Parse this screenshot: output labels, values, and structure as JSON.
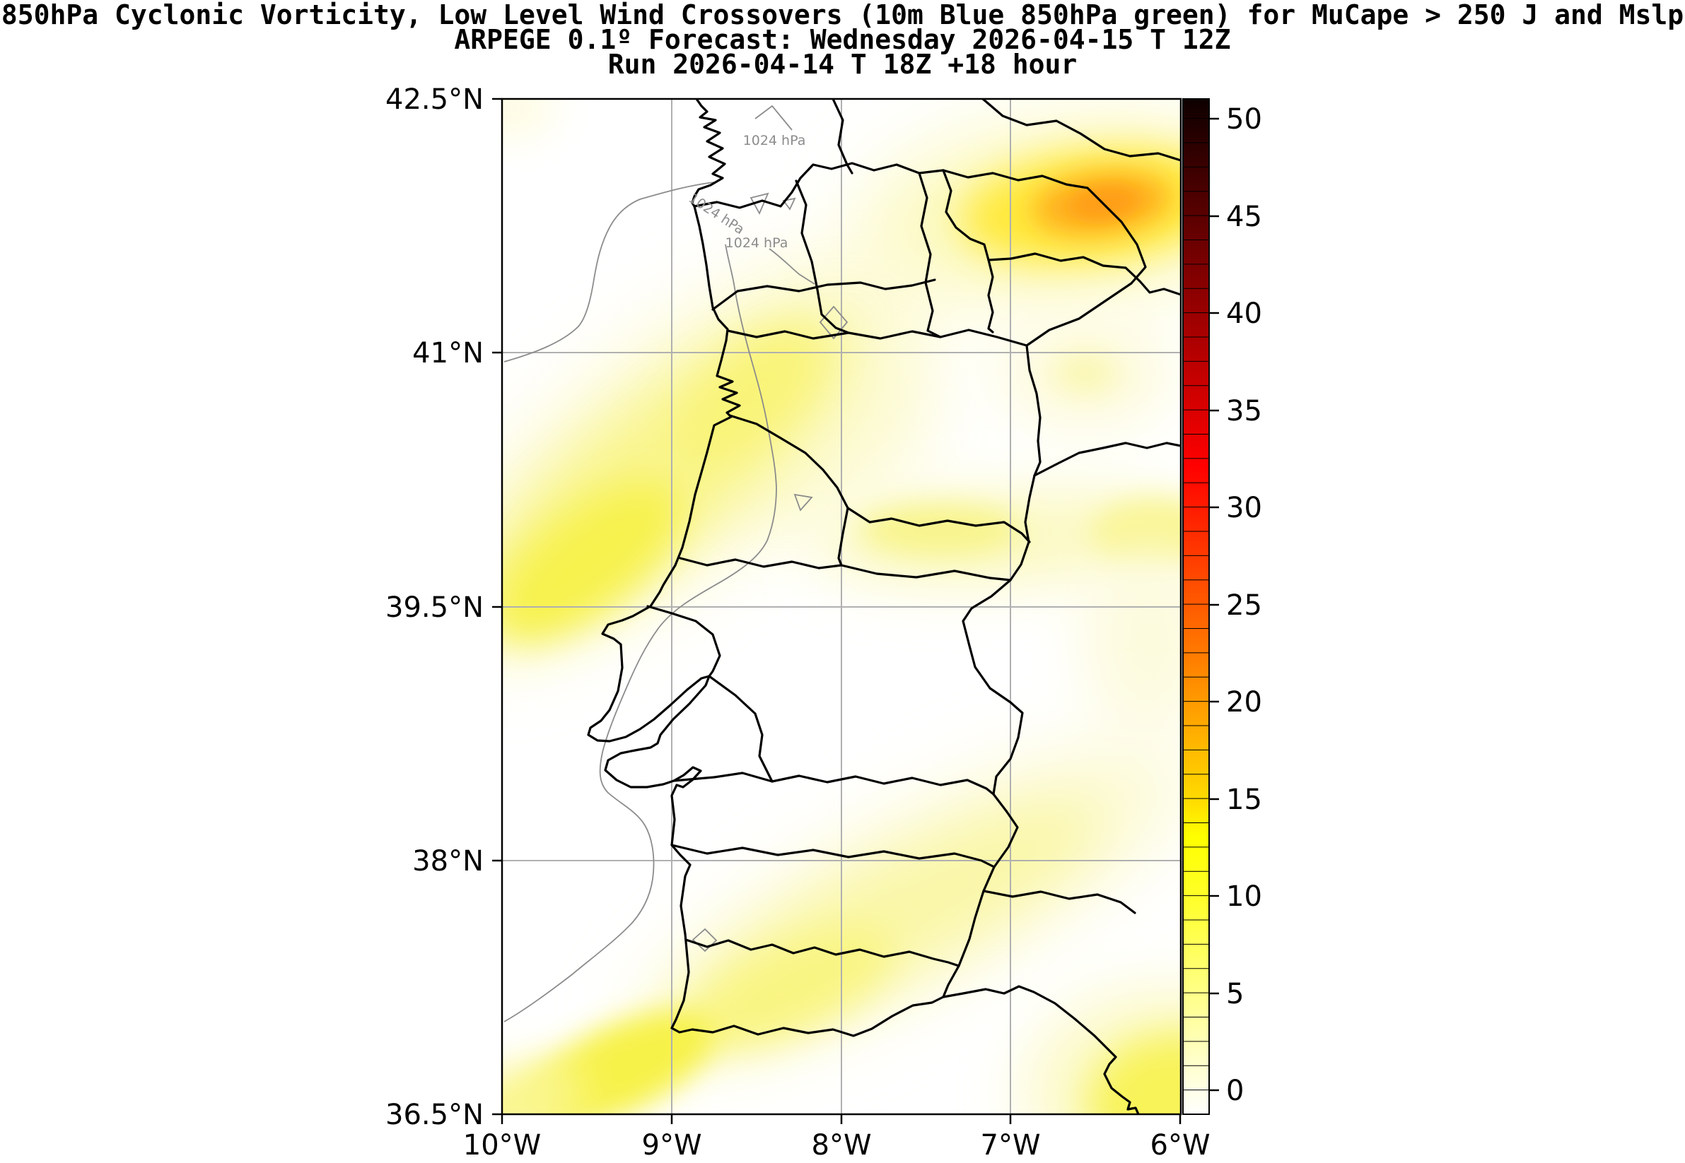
{
  "title": {
    "line1": "850hPa Cyclonic Vorticity, Low Level Wind Crossovers (10m Blue 850hPa green) for MuCape > 250 J and Mslp",
    "line2": "ARPEGE 0.1º Forecast: Wednesday 2026-04-15 T 12Z",
    "line3": "Run 2026-04-14 T 18Z +18 hour"
  },
  "axes": {
    "lat_ticks": [
      "42.5°N",
      "41°N",
      "39.5°N",
      "38°N",
      "36.5°N"
    ],
    "lon_ticks": [
      "10°W",
      "9°W",
      "8°W",
      "7°W",
      "6°W"
    ]
  },
  "colorbar": {
    "ticks": [
      "0",
      "5",
      "10",
      "15",
      "20",
      "25",
      "30",
      "35",
      "40",
      "45",
      "50"
    ],
    "segment_step": 1.25,
    "colors": {
      "0": "#FFFFE7",
      "5": "#FFFF87",
      "10": "#FFFF28",
      "15": "#FFDA00",
      "20": "#FF9A00",
      "25": "#FF5A00",
      "30": "#FF1B00",
      "35": "#DA0000",
      "40": "#9A0000",
      "45": "#5A0000",
      "50": "#1B0000"
    }
  },
  "map": {
    "mslp_labels": [
      "1024 hPa",
      "1024 hPa",
      "1024 hPa"
    ],
    "grid_color": "#b0b0b0",
    "contour_color": "#8c8c8c",
    "boundary_color": "#000000"
  },
  "chart_data": {
    "type": "heatmap",
    "title": "850hPa Cyclonic Vorticity, Low Level Wind Crossovers (10m Blue 850hPa green) for MuCape > 250 J and Mslp",
    "model": "ARPEGE 0.1º",
    "valid_time": "Wednesday 2026-04-15 T 12Z",
    "run": "2026-04-14 T 18Z +18 hour",
    "extent": {
      "lon_min": "10°W",
      "lon_max": "6°W",
      "lat_min": "36.5°N",
      "lat_max": "42.5°N"
    },
    "grid_lons": [
      "9°W",
      "8°W",
      "7°W"
    ],
    "grid_lats": [
      "41°N",
      "39.5°N",
      "38°N"
    ],
    "colorbar_range": [
      0,
      50
    ],
    "colorbar_tick_step": 5,
    "mslp_contour_hpa": 1024,
    "features": [
      {
        "name": "vorticity-maximum-northeast",
        "approx_lon": "6.4°W",
        "approx_lat": "41.9°N",
        "approx_value": 22
      },
      {
        "name": "nw-coastal-diagonal-band",
        "from": "8.4°W 41.2°N",
        "to": "10°W 39.4°N",
        "approx_value": 9
      },
      {
        "name": "central-east-west-band",
        "approx_lat": "39.9°N",
        "from": "8°W",
        "to": "6°W",
        "approx_value": 6
      },
      {
        "name": "faint-blob-east",
        "approx_lon": "6.6°W",
        "approx_lat": "40.9°N",
        "approx_value": 3
      },
      {
        "name": "se-diagonal-band",
        "from": "6°W 38.3°N",
        "to": "9.6°W 36.5°N",
        "approx_value": 9
      },
      {
        "name": "se-corner-maximum",
        "approx_lon": "6.1°W",
        "approx_lat": "36.6°N",
        "approx_value": 11
      }
    ]
  }
}
